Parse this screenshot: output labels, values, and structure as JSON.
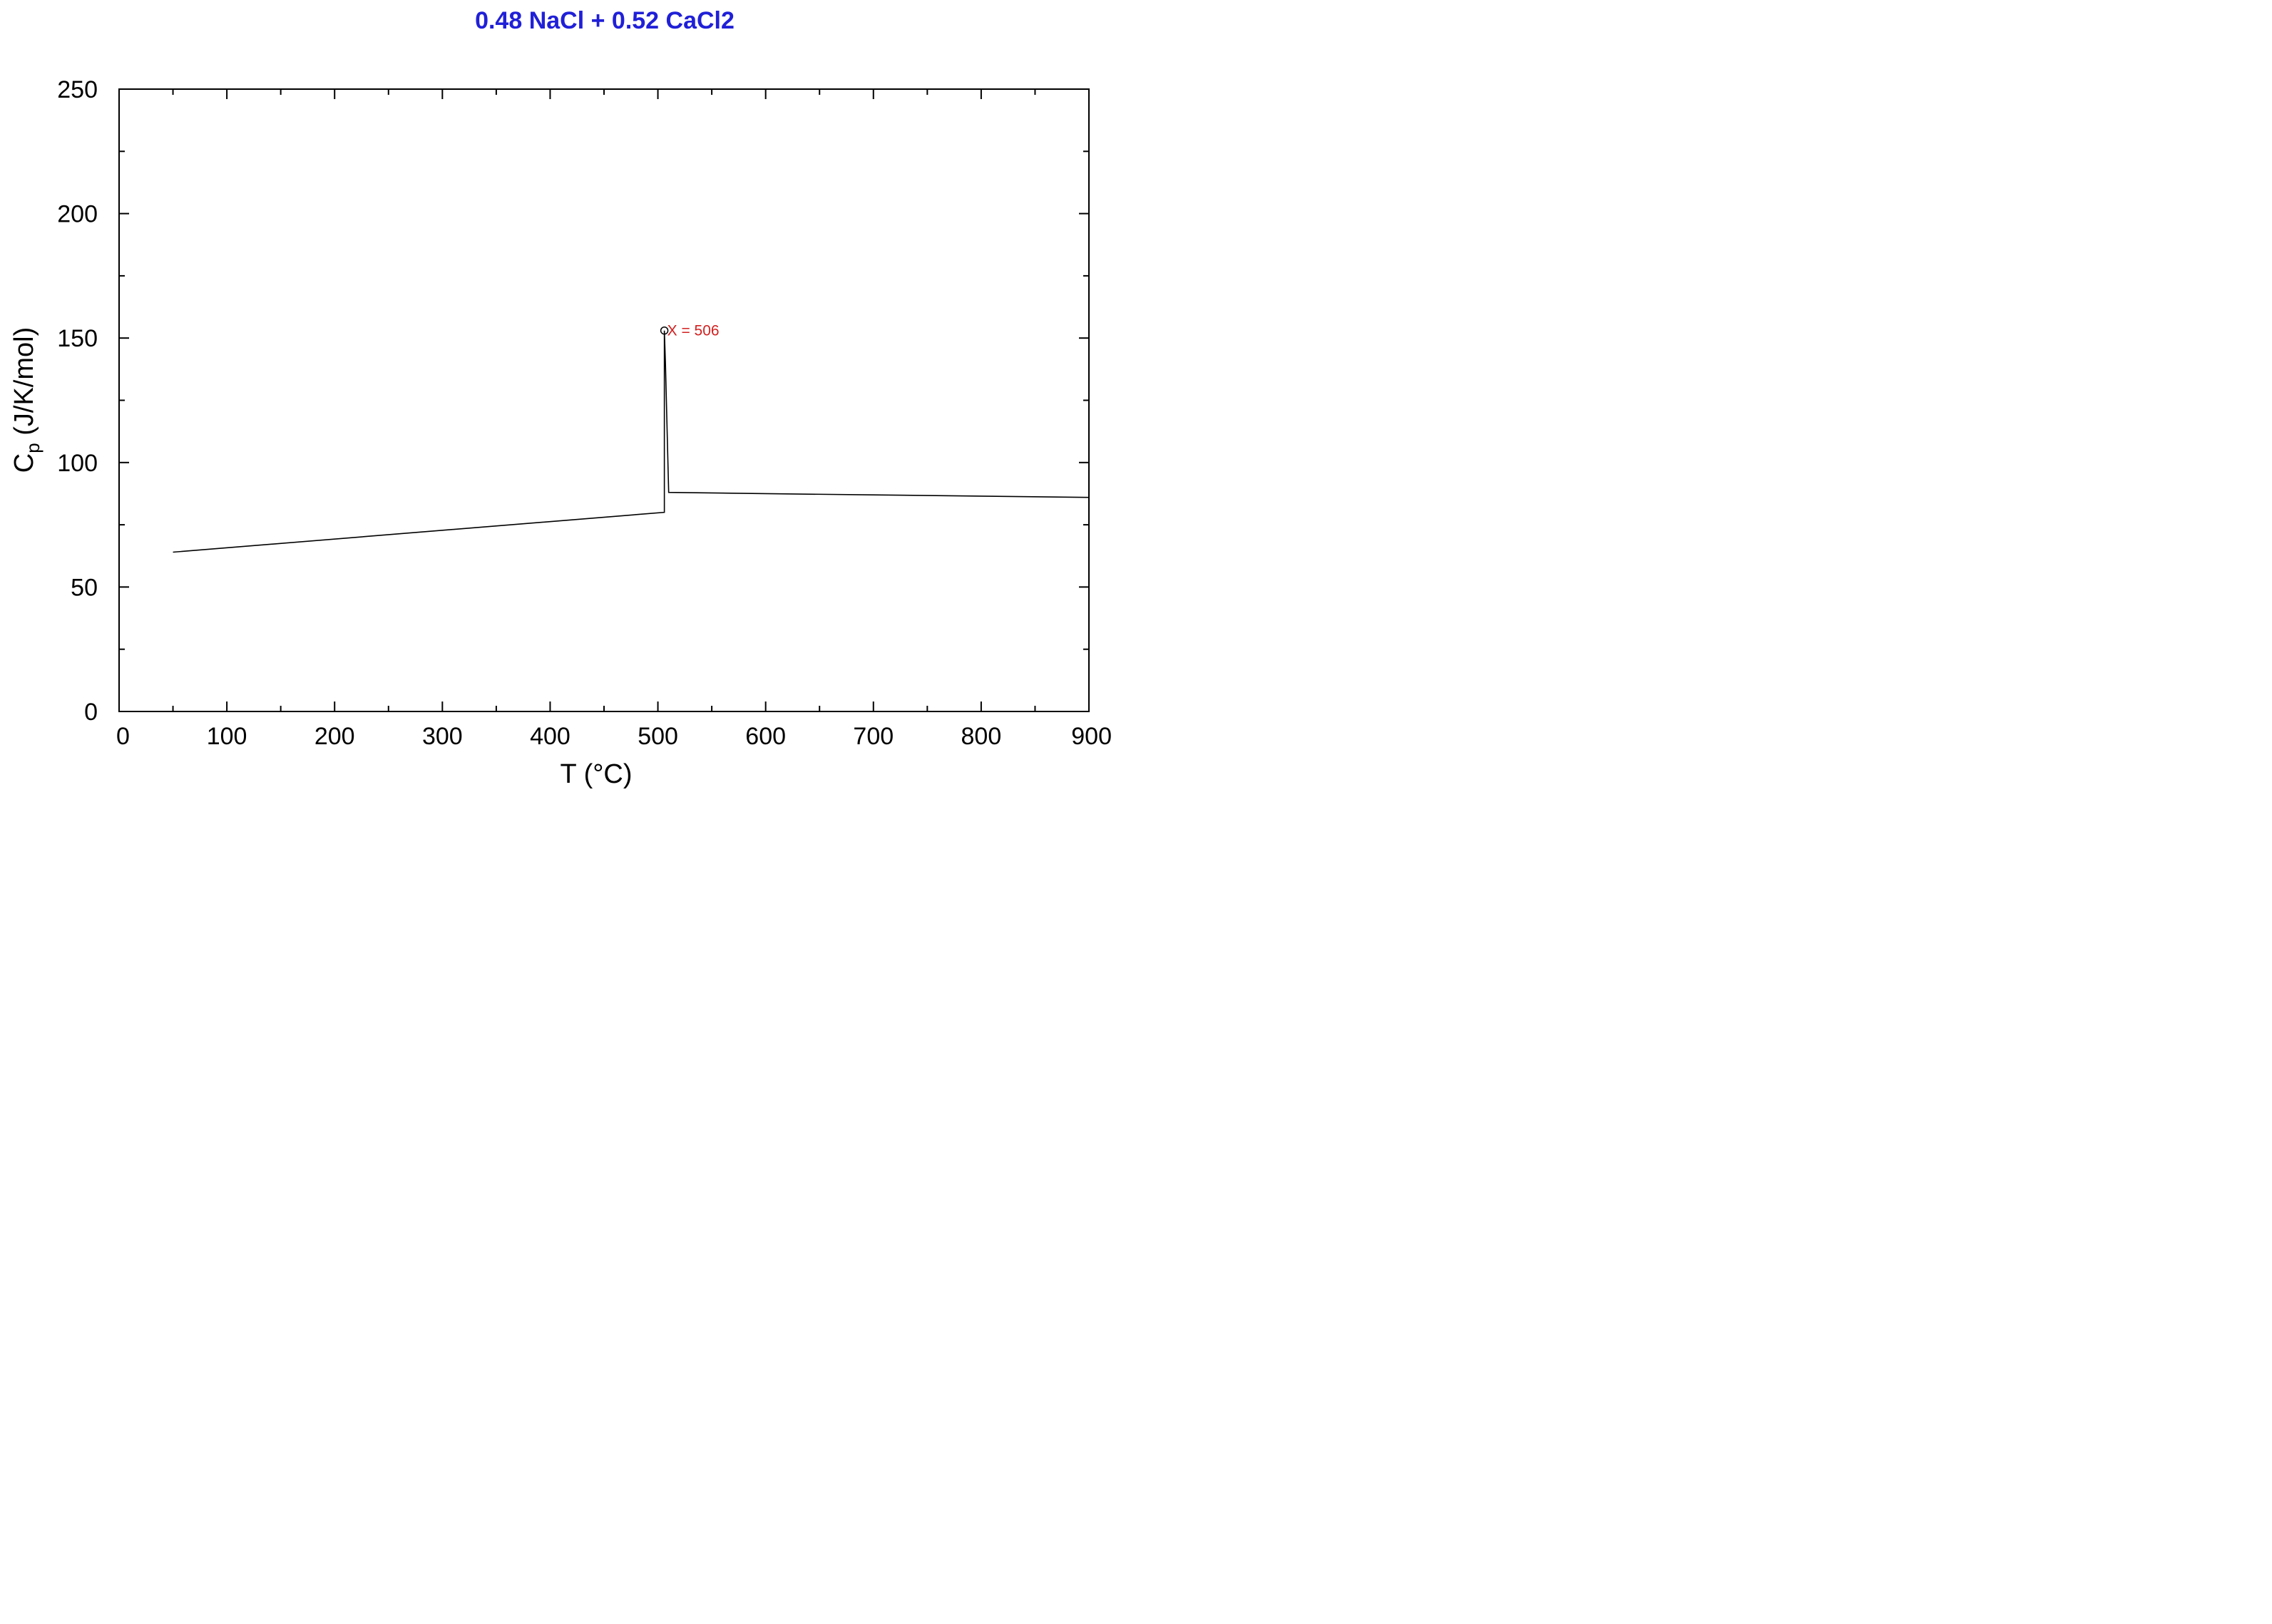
{
  "chart_data": {
    "type": "line",
    "title": "0.48 NaCl  +  0.52 CaCl2",
    "xlabel": "T (°C)",
    "ylabel_main": "C",
    "ylabel_sub": "p",
    "ylabel_rest": " (J/K/mol)",
    "xlim": [
      0,
      900
    ],
    "ylim": [
      0,
      250
    ],
    "x_ticks": [
      0,
      100,
      200,
      300,
      400,
      500,
      600,
      700,
      800,
      900
    ],
    "x_minor_ticks": [
      50,
      150,
      250,
      350,
      450,
      550,
      650,
      750,
      850
    ],
    "y_ticks": [
      0,
      50,
      100,
      150,
      200,
      250
    ],
    "y_minor_ticks": [
      25,
      75,
      125,
      175,
      225
    ],
    "grid": false,
    "series": [
      {
        "x": [
          50,
          506,
          506,
          507,
          510,
          600,
          700,
          800,
          900
        ],
        "y": [
          64,
          80,
          153,
          140,
          88,
          87.5,
          87,
          86.5,
          86
        ]
      }
    ],
    "annotation": {
      "x": 506,
      "y": 153,
      "label": "X = 506"
    },
    "colors": {
      "title": "#2020d8",
      "line": "#000000",
      "annotation": "#d22020"
    }
  }
}
